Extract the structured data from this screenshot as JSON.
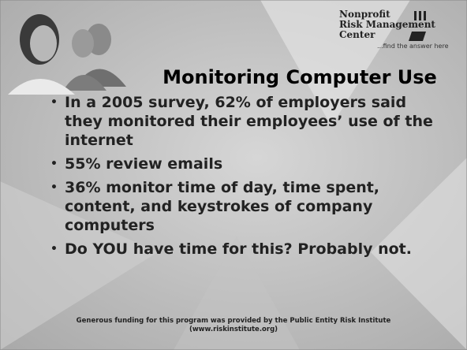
{
  "logo": {
    "lines": [
      "Nonprofit",
      "Risk Management",
      "Center"
    ],
    "tagline": "...find the answer here"
  },
  "title": "Monitoring Computer Use",
  "bullets": [
    "In a 2005 survey, 62% of employers said they monitored their employees’ use of the internet",
    "55% review emails",
    "36% monitor time of day, time spent, content, and keystrokes of company computers",
    "Do YOU have time for this? Probably not."
  ],
  "footer": {
    "line1": "Generous funding for this program was provided by the Public Entity Risk Institute",
    "line2": "(www.riskinstitute.org)"
  }
}
